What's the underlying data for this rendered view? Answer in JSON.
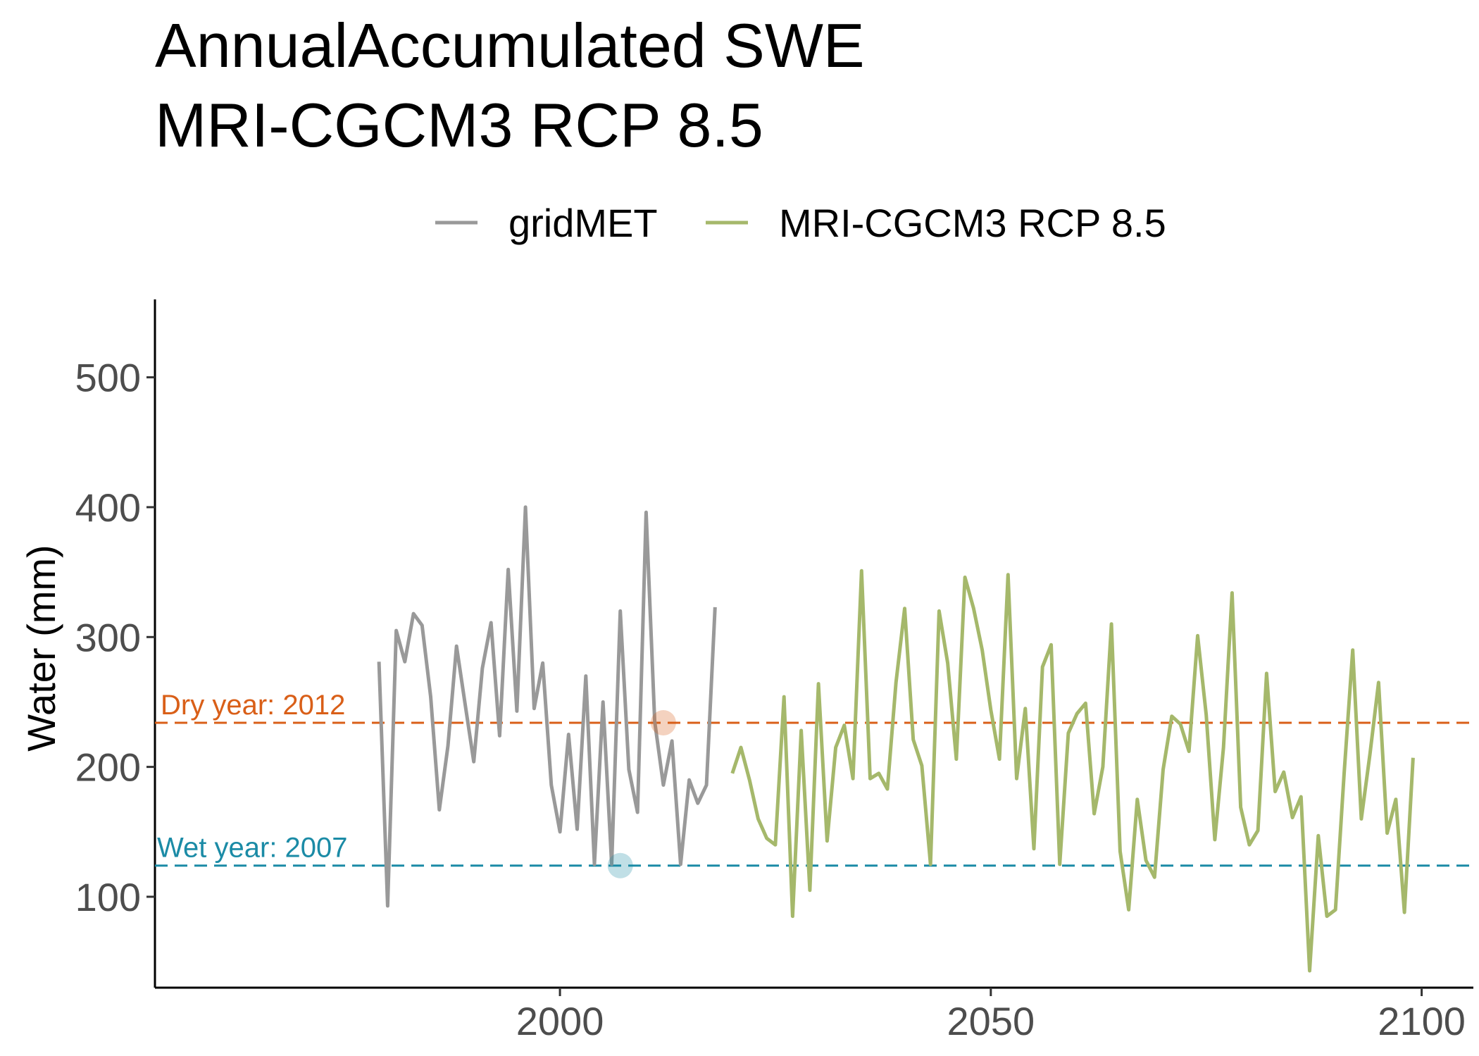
{
  "chart_data": {
    "type": "line",
    "title": "AnnualAccumulated SWE",
    "subtitle": "MRI-CGCM3 RCP 8.5",
    "xlabel": "",
    "ylabel": "Water (mm)",
    "xlim": [
      1953,
      2106
    ],
    "ylim": [
      30,
      560
    ],
    "x_ticks": [
      2000,
      2050,
      2100
    ],
    "y_ticks": [
      100,
      200,
      300,
      400,
      500
    ],
    "grid": false,
    "legend_position": "top",
    "series": [
      {
        "name": "gridMET",
        "color": "#999999",
        "x": [
          1979,
          1980,
          1981,
          1982,
          1983,
          1984,
          1985,
          1986,
          1987,
          1988,
          1989,
          1990,
          1991,
          1992,
          1993,
          1994,
          1995,
          1996,
          1997,
          1998,
          1999,
          2000,
          2001,
          2002,
          2003,
          2004,
          2005,
          2006,
          2007,
          2008,
          2009,
          2010,
          2011,
          2012,
          2013,
          2014,
          2015,
          2016,
          2017,
          2018
        ],
        "values": [
          281,
          93,
          305,
          281,
          318,
          309,
          254,
          167,
          216,
          293,
          248,
          204,
          276,
          311,
          224,
          352,
          243,
          400,
          245,
          280,
          186,
          150,
          225,
          152,
          270,
          125,
          250,
          125,
          320,
          198,
          165,
          396,
          235,
          186,
          220,
          125,
          190,
          172,
          186,
          323
        ]
      },
      {
        "name": "MRI-CGCM3 RCP 8.5",
        "color": "#a5b86b",
        "x": [
          2020,
          2021,
          2022,
          2023,
          2024,
          2025,
          2026,
          2027,
          2028,
          2029,
          2030,
          2031,
          2032,
          2033,
          2034,
          2035,
          2036,
          2037,
          2038,
          2039,
          2040,
          2041,
          2042,
          2043,
          2044,
          2045,
          2046,
          2047,
          2048,
          2049,
          2050,
          2051,
          2052,
          2053,
          2054,
          2055,
          2056,
          2057,
          2058,
          2059,
          2060,
          2061,
          2062,
          2063,
          2064,
          2065,
          2066,
          2067,
          2068,
          2069,
          2070,
          2071,
          2072,
          2073,
          2074,
          2075,
          2076,
          2077,
          2078,
          2079,
          2080,
          2081,
          2082,
          2083,
          2084,
          2085,
          2086,
          2087,
          2088,
          2089,
          2090,
          2091,
          2092,
          2093,
          2094,
          2095,
          2096,
          2097,
          2098,
          2099
        ],
        "values": [
          195,
          215,
          190,
          160,
          145,
          140,
          254,
          85,
          228,
          105,
          264,
          143,
          215,
          232,
          191,
          351,
          191,
          195,
          183,
          265,
          322,
          221,
          201,
          125,
          320,
          280,
          206,
          346,
          322,
          290,
          244,
          206,
          348,
          191,
          245,
          137,
          277,
          294,
          125,
          226,
          241,
          249,
          164,
          200,
          310,
          135,
          90,
          175,
          128,
          115,
          198,
          239,
          233,
          212,
          301,
          240,
          144,
          215,
          334,
          169,
          140,
          151,
          272,
          181,
          196,
          161,
          177,
          43,
          147,
          85,
          90,
          195,
          290,
          160,
          210,
          265,
          149,
          175,
          88,
          207
        ]
      }
    ],
    "reference_lines": [
      {
        "label": "Dry year: 2012",
        "year": 2012,
        "value": 234,
        "color": "#d95f18"
      },
      {
        "label": "Wet year: 2007",
        "year": 2007,
        "value": 124,
        "color": "#1b8ba6"
      }
    ]
  }
}
